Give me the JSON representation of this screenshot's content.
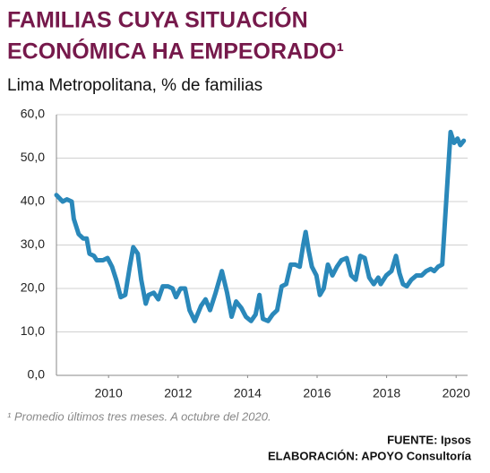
{
  "chart_data": {
    "type": "line",
    "title": [
      "FAMILIAS CUYA SITUACIÓN",
      "ECONÓMICA HA EMPEORADO¹"
    ],
    "subtitle": "Lima Metropolitana, % de familias",
    "footnote": "¹ Promedio últimos tres meses. A octubre del 2020.",
    "source": [
      "FUENTE: Ipsos",
      "ELABORACIÓN: APOYO Consultoría"
    ],
    "color": "#2a88ba",
    "grid": true,
    "x": [
      2009.0,
      2009.18,
      2009.3,
      2009.44,
      2009.5,
      2009.64,
      2009.77,
      2009.87,
      2009.95,
      2010.08,
      2010.16,
      2010.34,
      2010.47,
      2010.6,
      2010.72,
      2010.85,
      2010.98,
      2011.11,
      2011.21,
      2011.34,
      2011.44,
      2011.57,
      2011.65,
      2011.8,
      2011.93,
      2012.06,
      2012.21,
      2012.34,
      2012.44,
      2012.57,
      2012.7,
      2012.83,
      2012.98,
      2013.16,
      2013.29,
      2013.42,
      2013.58,
      2013.76,
      2013.91,
      2014.04,
      2014.17,
      2014.32,
      2014.45,
      2014.6,
      2014.73,
      2014.84,
      2014.94,
      2015.09,
      2015.22,
      2015.35,
      2015.48,
      2015.61,
      2015.74,
      2015.87,
      2016.0,
      2016.1,
      2016.17,
      2016.25,
      2016.35,
      2016.48,
      2016.58,
      2016.69,
      2016.81,
      2016.94,
      2017.07,
      2017.2,
      2017.35,
      2017.48,
      2017.61,
      2017.74,
      2017.87,
      2018.0,
      2018.13,
      2018.26,
      2018.33,
      2018.49,
      2018.64,
      2018.77,
      2018.87,
      2018.97,
      2019.08,
      2019.21,
      2019.36,
      2019.51,
      2019.64,
      2019.77,
      2019.87,
      2019.98,
      2020.1,
      2020.23,
      2020.34,
      2020.44,
      2020.54,
      2020.62,
      2020.72
    ],
    "values": [
      41.5,
      40,
      40.5,
      40,
      36,
      32.5,
      31.5,
      31.5,
      28,
      27.5,
      26.5,
      26.5,
      27,
      25,
      22,
      18,
      18.5,
      25,
      29.5,
      28,
      22,
      16.5,
      18.5,
      19,
      17.5,
      20.5,
      20.5,
      20,
      18,
      20,
      20,
      15,
      12.5,
      16,
      17.5,
      15,
      19,
      24,
      19,
      13.5,
      17,
      15.5,
      13.5,
      12.5,
      14,
      18.5,
      13,
      12.5,
      14,
      15,
      20.5,
      21,
      25.5,
      25.5,
      25,
      30,
      33,
      29,
      25,
      23,
      18.5,
      20,
      25.5,
      23,
      25,
      26.5,
      27,
      23,
      22,
      27.5,
      27,
      22.5,
      21,
      22.5,
      21,
      23,
      24,
      27.5,
      23.5,
      21,
      20.5,
      22,
      23,
      23,
      24,
      24.5,
      24,
      25,
      25.5,
      42,
      56,
      53.5,
      54.5,
      53,
      54
    ],
    "xlim": [
      2009.0,
      2020.83
    ],
    "xticks": [
      {
        "value": 2010.5,
        "label": "2010"
      },
      {
        "value": 2012.5,
        "label": "2012"
      },
      {
        "value": 2014.5,
        "label": "2014"
      },
      {
        "value": 2016.5,
        "label": "2016"
      },
      {
        "value": 2018.5,
        "label": "2018"
      },
      {
        "value": 2020.5,
        "label": "2020"
      }
    ],
    "ylim": [
      0,
      60
    ],
    "yticks": [
      {
        "value": 0,
        "label": "0,0"
      },
      {
        "value": 10,
        "label": "10,0"
      },
      {
        "value": 20,
        "label": "20,0"
      },
      {
        "value": 30,
        "label": "30,0"
      },
      {
        "value": 40,
        "label": "40,0"
      },
      {
        "value": 50,
        "label": "50,0"
      },
      {
        "value": 60,
        "label": "60,0"
      }
    ]
  }
}
